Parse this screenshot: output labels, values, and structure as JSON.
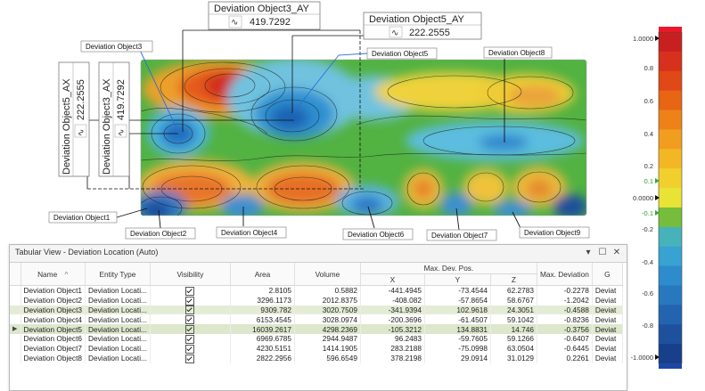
{
  "annotations": {
    "obj3_ax_title": "Deviation Object3_AX",
    "obj3_ax_value": "419.7292",
    "obj3_ay_title": "Deviation Object3_AY",
    "obj3_ay_value": "419.7292",
    "obj5_ax_title": "Deviation Object5_AX",
    "obj5_ax_value": "222.2555",
    "obj5_ay_title": "Deviation Object5_AY",
    "obj5_ay_value": "222.2555",
    "approx_symbol": "∿"
  },
  "callouts": {
    "obj1": "Deviation Object1",
    "obj2": "Deviation Object2",
    "obj3": "Deviation Object3",
    "obj4": "Deviation Object4",
    "obj5": "Deviation Object5",
    "obj6": "Deviation Object6",
    "obj7": "Deviation Object7",
    "obj8": "Deviation Object8",
    "obj9": "Deviation Object9"
  },
  "color_bar": {
    "labels": [
      "1.0000",
      "0.8",
      "0.6",
      "0.4",
      "0.2",
      "0.1",
      "0.0000",
      "-0.1",
      "-0.2",
      "-0.4",
      "-0.6",
      "-0.8",
      "-1.0000"
    ],
    "colors": [
      "#c82021",
      "#d7301c",
      "#e04818",
      "#e86514",
      "#ee8218",
      "#f19d1f",
      "#f3b726",
      "#f1d02e",
      "#e9e335",
      "#77bd3c",
      "#45b3b9",
      "#38a2d3",
      "#2e8ccd",
      "#2778bf",
      "#2264af",
      "#1d519e",
      "#173f8a"
    ]
  },
  "tabular_view": {
    "title": "Tabular View - Deviation Location (Auto)",
    "controls": {
      "dropdown": "▾",
      "maximize": "☐",
      "close": "✕"
    },
    "headers": {
      "name": "Name",
      "sort": "^",
      "entity_type": "Entity Type",
      "visibility": "Visibility",
      "area": "Area",
      "volume": "Volume",
      "max_dev_pos": "Max. Dev. Pos.",
      "x": "X",
      "y": "Y",
      "z": "Z",
      "max_deviation": "Max. Deviation",
      "g": "G"
    },
    "rows": [
      {
        "name": "Deviation Object1",
        "entity": "Deviation Locati...",
        "area": "2.8105",
        "volume": "0.5882",
        "x": "-441.4945",
        "y": "-73.4544",
        "z": "62.2783",
        "maxdev": "-0.2278",
        "g": "Deviat"
      },
      {
        "name": "Deviation Object2",
        "entity": "Deviation Locati...",
        "area": "3296.1173",
        "volume": "2012.8375",
        "x": "-408.082",
        "y": "-57.8654",
        "z": "58.6767",
        "maxdev": "-1.2042",
        "g": "Deviat"
      },
      {
        "name": "Deviation Object3",
        "entity": "Deviation Locati...",
        "area": "9309.782",
        "volume": "3020.7509",
        "x": "-341.9394",
        "y": "102.9618",
        "z": "24.3051",
        "maxdev": "-0.4588",
        "g": "Deviat"
      },
      {
        "name": "Deviation Object4",
        "entity": "Deviation Locati...",
        "area": "6153.4545",
        "volume": "3028.0974",
        "x": "-200.3696",
        "y": "-61.4507",
        "z": "59.1042",
        "maxdev": "-0.8236",
        "g": "Deviat"
      },
      {
        "name": "Deviation Object5",
        "entity": "Deviation Locati...",
        "area": "16039.2617",
        "volume": "4298.2369",
        "x": "-105.3212",
        "y": "134.8831",
        "z": "14.746",
        "maxdev": "-0.3756",
        "g": "Deviat"
      },
      {
        "name": "Deviation Object6",
        "entity": "Deviation Locati...",
        "area": "6969.6785",
        "volume": "2944.9487",
        "x": "96.2483",
        "y": "-59.7605",
        "z": "59.1266",
        "maxdev": "-0.6407",
        "g": "Deviat"
      },
      {
        "name": "Deviation Object7",
        "entity": "Deviation Locati...",
        "area": "4230.5151",
        "volume": "1414.1905",
        "x": "283.2188",
        "y": "-75.0998",
        "z": "63.0504",
        "maxdev": "-0.6445",
        "g": "Deviat"
      },
      {
        "name": "Deviation Object8",
        "entity": "Deviation Locati...",
        "area": "2822.2956",
        "volume": "596.6549",
        "x": "378.2198",
        "y": "29.0914",
        "z": "31.0129",
        "maxdev": "0.2261",
        "g": "Deviat"
      }
    ]
  }
}
